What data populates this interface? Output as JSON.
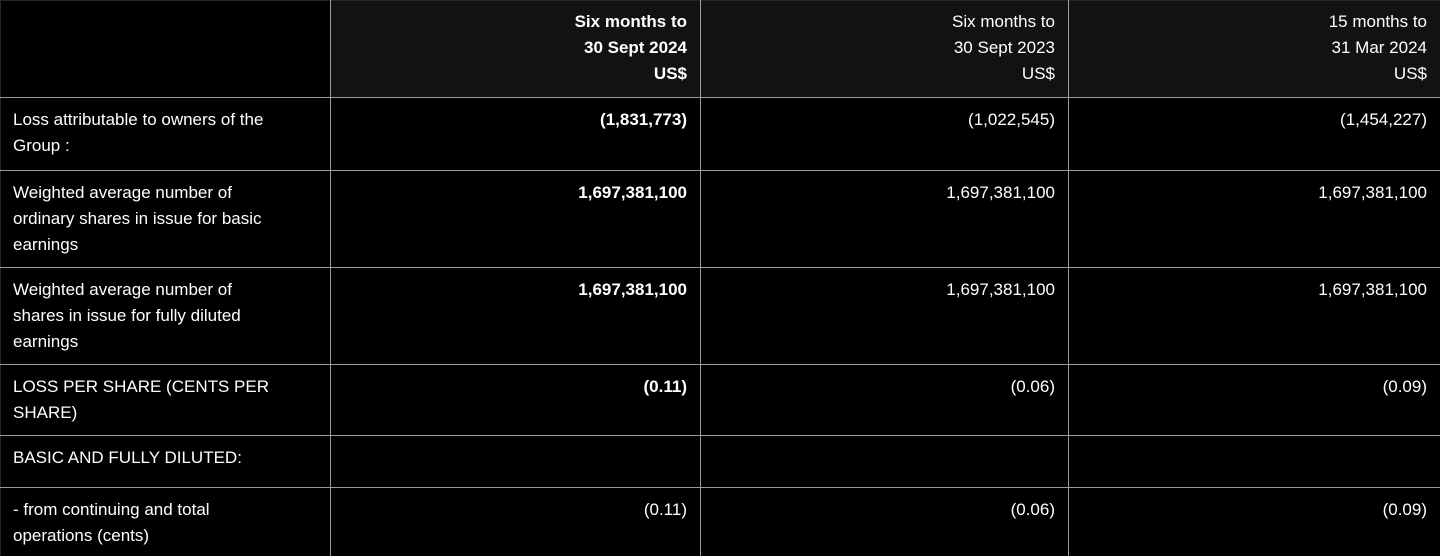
{
  "colors": {
    "background": "#000000",
    "header_cell_background": "#121212",
    "grid_line": "#9c9c9c",
    "outer_edge": "#262626",
    "text": "#ffffff"
  },
  "table": {
    "columns": [
      {
        "header": ""
      },
      {
        "header": "Six months to\n30 Sept 2024\nUS$",
        "current": true
      },
      {
        "header": "Six months to\n30 Sept 2023\nUS$",
        "current": false
      },
      {
        "header": "15 months to\n31 Mar 2024\nUS$",
        "current": false
      }
    ],
    "rows": [
      {
        "label": "Loss attributable to owners of the\nGroup :",
        "values": [
          "(1,831,773)",
          "(1,022,545)",
          "(1,454,227)"
        ],
        "current_bold": true
      },
      {
        "label": "Weighted average number of\nordinary shares in issue for basic\nearnings",
        "values": [
          "1,697,381,100",
          "1,697,381,100",
          "1,697,381,100"
        ],
        "current_bold": true
      },
      {
        "label": "Weighted average number of\nshares in issue for fully diluted\nearnings",
        "values": [
          "1,697,381,100",
          "1,697,381,100",
          "1,697,381,100"
        ],
        "current_bold": true
      },
      {
        "label": "LOSS PER SHARE (CENTS PER\nSHARE)",
        "values": [
          "(0.11)",
          "(0.06)",
          "(0.09)"
        ],
        "current_bold": true
      },
      {
        "label": "BASIC AND FULLY DILUTED:",
        "values": [
          "",
          "",
          ""
        ],
        "current_bold": false
      },
      {
        "label": "- from continuing and total\noperations (cents)",
        "values": [
          "(0.11)",
          "(0.06)",
          "(0.09)"
        ],
        "current_bold": false
      }
    ]
  }
}
